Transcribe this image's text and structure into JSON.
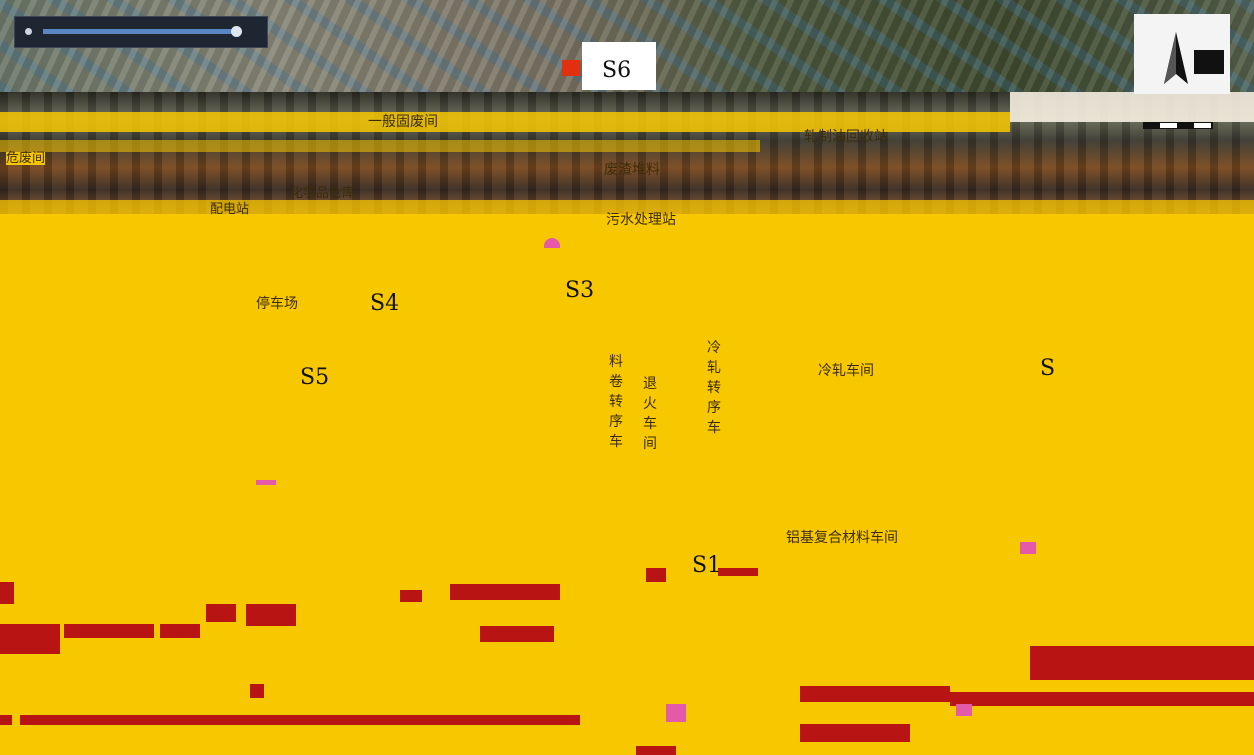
{
  "map": {
    "colors": {
      "plant_area": "#f7c700",
      "text": "#3c2c0a",
      "site_marker": "#e03010",
      "damage_red": "#b81414"
    },
    "icons": [
      "north-arrow-icon",
      "scale-bar-icon",
      "site-marker-icon"
    ],
    "area_labels": {
      "general_solid_waste": "一般固废间",
      "hazardous_waste": "危废间",
      "chem_warehouse": "化学品仓库",
      "power_room": "配电站",
      "rolling_oil_recovery": "轧制油回收站",
      "waste_bin": "废渣堆料",
      "water_treatment": "污水处理站",
      "parking": "停车场",
      "cold_rolling": "冷轧车间",
      "coil_transfer": "料卷转序车",
      "annealing": "退火车间",
      "cold_transfer": "冷轧转序车",
      "composite_workshop": "铝基复合材料车间"
    },
    "sites": {
      "s1": "S1",
      "s2": "S",
      "s3": "S3",
      "s4": "S4",
      "s5": "S5",
      "s6": "S6"
    }
  }
}
